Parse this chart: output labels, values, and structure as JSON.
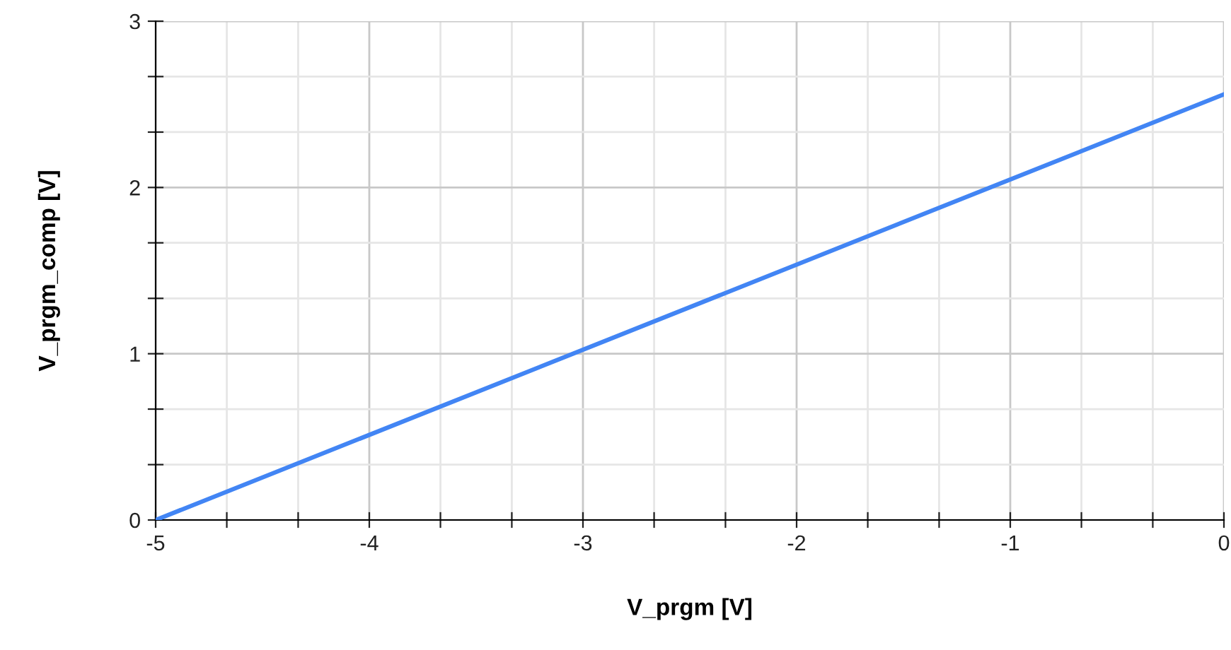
{
  "chart_data": {
    "type": "line",
    "xlabel": "V_prgm [V]",
    "ylabel": "V_prgm_comp [V]",
    "x": [
      -5,
      0
    ],
    "series": [
      {
        "color": "#4285f4",
        "values": [
          0,
          2.56
        ]
      }
    ],
    "xlim": [
      -5,
      0
    ],
    "ylim": [
      0,
      3
    ],
    "xticks": [
      -5,
      {
        "value": -4.667,
        "label": null
      },
      {
        "value": -4.333,
        "label": null
      },
      -4,
      {
        "value": -3.667,
        "label": null
      },
      {
        "value": -3.333,
        "label": null
      },
      -3,
      {
        "value": -2.667,
        "label": null
      },
      {
        "value": -2.333,
        "label": null
      },
      -2,
      {
        "value": -1.667,
        "label": null
      },
      {
        "value": -1.333,
        "label": null
      },
      -1,
      {
        "value": -0.667,
        "label": null
      },
      {
        "value": -0.333,
        "label": null
      },
      0
    ],
    "yticks": [
      0,
      {
        "value": 0.333,
        "label": null
      },
      {
        "value": 0.667,
        "label": null
      },
      1,
      {
        "value": 1.333,
        "label": null
      },
      {
        "value": 1.667,
        "label": null
      },
      2,
      {
        "value": 2.333,
        "label": null
      },
      {
        "value": 2.667,
        "label": null
      },
      3
    ],
    "grid": true,
    "marker": "none",
    "line_style": "solid",
    "legend": false
  }
}
